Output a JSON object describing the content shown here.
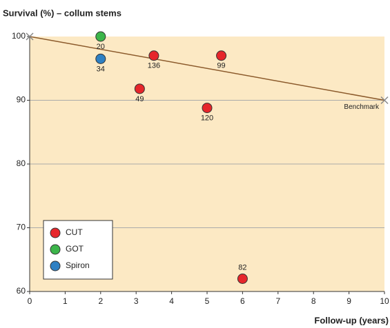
{
  "chart_data": {
    "type": "scatter",
    "title": "Survival (%) – collum stems",
    "x_label": "Follow-up (years)",
    "xlim": [
      0,
      10
    ],
    "ylim": [
      60,
      100
    ],
    "xticks": [
      0,
      1,
      2,
      3,
      4,
      5,
      6,
      7,
      8,
      9,
      10
    ],
    "yticks": [
      60,
      70,
      80,
      90,
      100
    ],
    "grid": true,
    "background": "#fce9c4",
    "legend": "lower left",
    "series": [
      {
        "name": "CUT",
        "color": "#e6262b",
        "x": [
          3.5,
          5.4,
          3.1,
          5,
          6
        ],
        "values": [
          97,
          97,
          91.8,
          88.8,
          62
        ],
        "n": [
          136,
          99,
          49,
          120,
          82
        ]
      },
      {
        "name": "GOT",
        "color": "#3cb54a",
        "x": [
          2
        ],
        "values": [
          100
        ],
        "n": [
          20
        ]
      },
      {
        "name": "Spiron",
        "color": "#2e80c3",
        "x": [
          2
        ],
        "values": [
          96.5
        ],
        "n": [
          34
        ]
      }
    ],
    "benchmark": {
      "label": "Benchmark",
      "color": "#8b5a2b",
      "x": [
        0,
        10
      ],
      "values": [
        100,
        90
      ]
    }
  }
}
